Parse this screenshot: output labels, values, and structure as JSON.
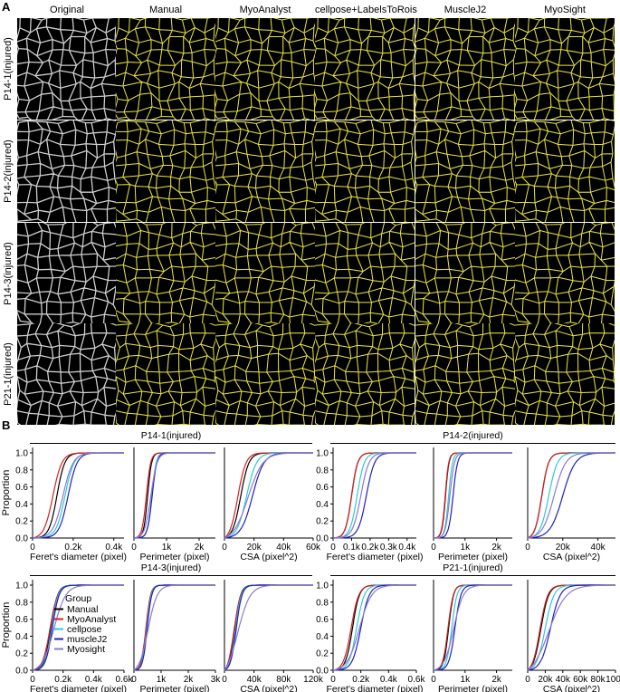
{
  "panelA": {
    "letter": "A",
    "columns": [
      "Original",
      "Manual",
      "MyoAnalyst",
      "cellpose+LabelsToRois",
      "MuscleJ2",
      "MyoSight"
    ],
    "rows": [
      "P14-1(injured)",
      "P14-2(injured)",
      "P14-3(injured)",
      "P21-1(injured)"
    ]
  },
  "panelB": {
    "letter": "B",
    "ylabel": "Proportion",
    "colors": {
      "Manual": "#000000",
      "MyoAnalyst": "#d62020",
      "cellpose": "#30c8d8",
      "muscleJ2": "#2020c0",
      "Myosight": "#8a7ad0"
    },
    "legend": {
      "title": "Group",
      "entries": [
        "Manual",
        "MyoAnalyst",
        "cellpose",
        "muscleJ2",
        "Myosight"
      ]
    }
  },
  "chart_data": [
    {
      "group": "P14-1(injured)",
      "type": "line",
      "xlabel": "Feret's diameter (pixel)",
      "ylabel": "Proportion",
      "xticks": [
        "0",
        "0.2k",
        "0.4k"
      ],
      "xlim": [
        0,
        450
      ],
      "yticks": [
        "0.0",
        "0.2",
        "0.4",
        "0.6",
        "0.8",
        "1.0"
      ],
      "ylim": [
        0,
        1
      ],
      "series": [
        {
          "name": "Manual",
          "median": 120,
          "spread": 35
        },
        {
          "name": "MyoAnalyst",
          "median": 100,
          "spread": 40
        },
        {
          "name": "cellpose",
          "median": 160,
          "spread": 40
        },
        {
          "name": "muscleJ2",
          "median": 175,
          "spread": 40
        },
        {
          "name": "Myosight",
          "median": 150,
          "spread": 45
        }
      ]
    },
    {
      "group": "P14-1(injured)",
      "type": "line",
      "xlabel": "Perimeter (pixel)",
      "xticks": [
        "0",
        "1k",
        "2k"
      ],
      "xlim": [
        0,
        2500
      ],
      "ylim": [
        0,
        1
      ],
      "series": [
        {
          "name": "Manual",
          "median": 420,
          "spread": 110
        },
        {
          "name": "MyoAnalyst",
          "median": 380,
          "spread": 120
        },
        {
          "name": "cellpose",
          "median": 550,
          "spread": 120
        },
        {
          "name": "muscleJ2",
          "median": 560,
          "spread": 130
        },
        {
          "name": "Myosight",
          "median": 520,
          "spread": 170
        }
      ]
    },
    {
      "group": "P14-1(injured)",
      "type": "line",
      "xlabel": "CSA (pixel^2)",
      "xticks": [
        "0",
        "20k",
        "40k",
        "60k"
      ],
      "xlim": [
        0,
        60000
      ],
      "ylim": [
        0,
        1
      ],
      "series": [
        {
          "name": "Manual",
          "median": 11000,
          "spread": 5000
        },
        {
          "name": "MyoAnalyst",
          "median": 9000,
          "spread": 5000
        },
        {
          "name": "cellpose",
          "median": 15000,
          "spread": 6000
        },
        {
          "name": "muscleJ2",
          "median": 19000,
          "spread": 7000
        },
        {
          "name": "Myosight",
          "median": 16000,
          "spread": 9000
        }
      ]
    },
    {
      "group": "P14-2(injured)",
      "type": "line",
      "xlabel": "Feret's diameter (pixel)",
      "ylabel": "Proportion",
      "xticks": [
        "0",
        "0.1k",
        "0.2k",
        "0.3k",
        "0.4k"
      ],
      "xlim": [
        0,
        450
      ],
      "yticks": [
        "0.0",
        "0.2",
        "0.4",
        "0.6",
        "0.8",
        "1.0"
      ],
      "ylim": [
        0,
        1
      ],
      "series": [
        {
          "name": "Manual",
          "median": 100,
          "spread": 30
        },
        {
          "name": "MyoAnalyst",
          "median": 100,
          "spread": 30
        },
        {
          "name": "cellpose",
          "median": 130,
          "spread": 35
        },
        {
          "name": "muscleJ2",
          "median": 180,
          "spread": 40
        },
        {
          "name": "Myosight",
          "median": 150,
          "spread": 40
        }
      ]
    },
    {
      "group": "P14-2(injured)",
      "type": "line",
      "xlabel": "Perimeter (pixel)",
      "xticks": [
        "0",
        "1k",
        "2k"
      ],
      "xlim": [
        0,
        2500
      ],
      "ylim": [
        0,
        1
      ],
      "series": [
        {
          "name": "Manual",
          "median": 380,
          "spread": 100
        },
        {
          "name": "MyoAnalyst",
          "median": 370,
          "spread": 100
        },
        {
          "name": "cellpose",
          "median": 480,
          "spread": 110
        },
        {
          "name": "muscleJ2",
          "median": 620,
          "spread": 130
        },
        {
          "name": "Myosight",
          "median": 520,
          "spread": 130
        }
      ]
    },
    {
      "group": "P14-2(injured)",
      "type": "line",
      "xlabel": "CSA (pixel^2)",
      "xticks": [
        "0",
        "20k",
        "40k"
      ],
      "xlim": [
        0,
        50000
      ],
      "ylim": [
        0,
        1
      ],
      "series": [
        {
          "name": "Manual",
          "median": 8000,
          "spread": 3500
        },
        {
          "name": "MyoAnalyst",
          "median": 8000,
          "spread": 3500
        },
        {
          "name": "cellpose",
          "median": 12000,
          "spread": 4500
        },
        {
          "name": "muscleJ2",
          "median": 20000,
          "spread": 6500
        },
        {
          "name": "Myosight",
          "median": 15000,
          "spread": 6000
        }
      ]
    },
    {
      "group": "P14-3(injured)",
      "type": "line",
      "xlabel": "Feret's diameter (pixel)",
      "ylabel": "Proportion",
      "xticks": [
        "0",
        "0.2k",
        "0.4k",
        "0.6k"
      ],
      "xlim": [
        0,
        600
      ],
      "yticks": [
        "0.0",
        "0.2",
        "0.4",
        "0.6",
        "0.8",
        "1.0"
      ],
      "ylim": [
        0,
        1
      ],
      "series": [
        {
          "name": "Manual",
          "median": 120,
          "spread": 40
        },
        {
          "name": "MyoAnalyst",
          "median": 115,
          "spread": 45
        },
        {
          "name": "cellpose",
          "median": 125,
          "spread": 40
        },
        {
          "name": "muscleJ2",
          "median": 130,
          "spread": 40
        },
        {
          "name": "Myosight",
          "median": 140,
          "spread": 70
        }
      ]
    },
    {
      "group": "P14-3(injured)",
      "type": "line",
      "xlabel": "Perimeter (pixel)",
      "xticks": [
        "0",
        "1k",
        "2k",
        "3k"
      ],
      "xlim": [
        0,
        3000
      ],
      "ylim": [
        0,
        1
      ],
      "series": [
        {
          "name": "Manual",
          "median": 450,
          "spread": 150
        },
        {
          "name": "MyoAnalyst",
          "median": 440,
          "spread": 160
        },
        {
          "name": "cellpose",
          "median": 470,
          "spread": 150
        },
        {
          "name": "muscleJ2",
          "median": 490,
          "spread": 150
        },
        {
          "name": "Myosight",
          "median": 520,
          "spread": 300
        }
      ]
    },
    {
      "group": "P14-3(injured)",
      "type": "line",
      "xlabel": "CSA (pixel^2)",
      "xticks": [
        "0",
        "40k",
        "80k",
        "120k"
      ],
      "xlim": [
        0,
        120000
      ],
      "ylim": [
        0,
        1
      ],
      "series": [
        {
          "name": "Manual",
          "median": 14000,
          "spread": 7000
        },
        {
          "name": "MyoAnalyst",
          "median": 13000,
          "spread": 8000
        },
        {
          "name": "cellpose",
          "median": 15000,
          "spread": 7000
        },
        {
          "name": "muscleJ2",
          "median": 16000,
          "spread": 7000
        },
        {
          "name": "Myosight",
          "median": 18000,
          "spread": 15000
        }
      ]
    },
    {
      "group": "P21-1(injured)",
      "type": "line",
      "xlabel": "Feret's diameter (pixel)",
      "ylabel": "Proportion",
      "xticks": [
        "0",
        "0.2k",
        "0.4k",
        "0.6k"
      ],
      "xlim": [
        0,
        600
      ],
      "yticks": [
        "0.0",
        "0.2",
        "0.4",
        "0.6",
        "0.8",
        "1.0"
      ],
      "ylim": [
        0,
        1
      ],
      "series": [
        {
          "name": "Manual",
          "median": 140,
          "spread": 45
        },
        {
          "name": "MyoAnalyst",
          "median": 130,
          "spread": 50
        },
        {
          "name": "cellpose",
          "median": 170,
          "spread": 50
        },
        {
          "name": "muscleJ2",
          "median": 200,
          "spread": 55
        },
        {
          "name": "Myosight",
          "median": 190,
          "spread": 80
        }
      ]
    },
    {
      "group": "P21-1(injured)",
      "type": "line",
      "xlabel": "Perimeter (pixel)",
      "xticks": [
        "0",
        "1k",
        "2k"
      ],
      "xlim": [
        0,
        2500
      ],
      "ylim": [
        0,
        1
      ],
      "series": [
        {
          "name": "Manual",
          "median": 480,
          "spread": 140
        },
        {
          "name": "MyoAnalyst",
          "median": 460,
          "spread": 150
        },
        {
          "name": "cellpose",
          "median": 580,
          "spread": 150
        },
        {
          "name": "muscleJ2",
          "median": 680,
          "spread": 170
        },
        {
          "name": "Myosight",
          "median": 640,
          "spread": 280
        }
      ]
    },
    {
      "group": "P21-1(injured)",
      "type": "line",
      "xlabel": "CSA (pixel^2)",
      "xticks": [
        "0",
        "20k",
        "40k",
        "60k",
        "80k",
        "100k"
      ],
      "xlim": [
        0,
        100000
      ],
      "ylim": [
        0,
        1
      ],
      "series": [
        {
          "name": "Manual",
          "median": 15000,
          "spread": 8000
        },
        {
          "name": "MyoAnalyst",
          "median": 14000,
          "spread": 8000
        },
        {
          "name": "cellpose",
          "median": 20000,
          "spread": 9000
        },
        {
          "name": "muscleJ2",
          "median": 26000,
          "spread": 10000
        },
        {
          "name": "Myosight",
          "median": 24000,
          "spread": 18000
        }
      ]
    }
  ]
}
